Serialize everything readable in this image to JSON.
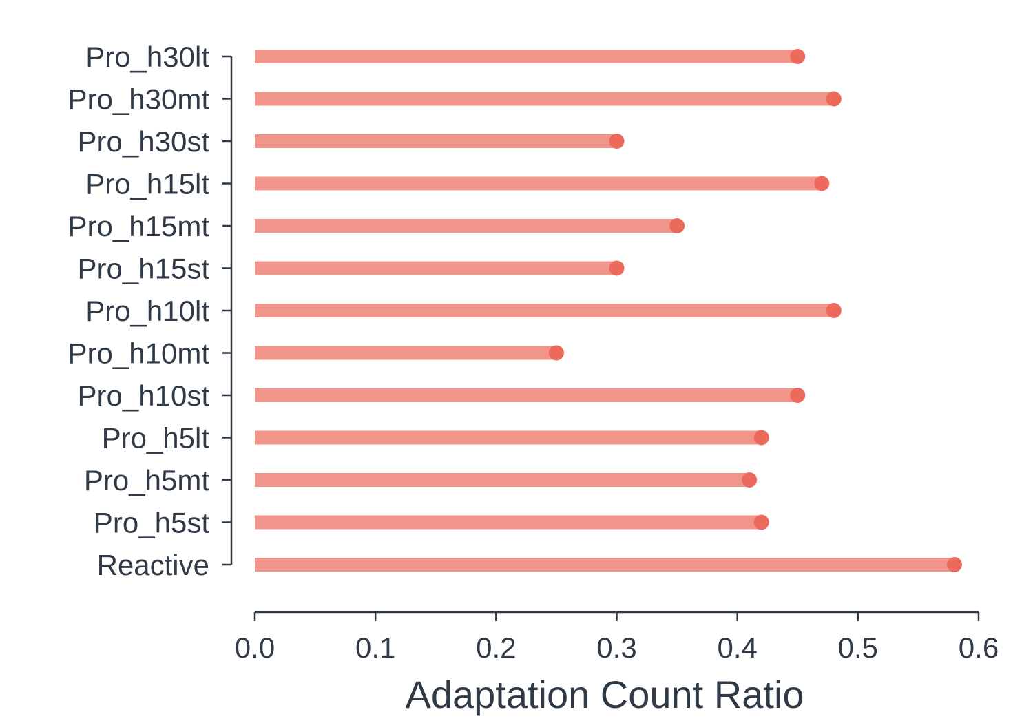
{
  "chart_data": {
    "type": "bar",
    "orientation": "horizontal",
    "style": "lollipop",
    "title": "",
    "xlabel": "Adaptation Count Ratio",
    "ylabel": "",
    "xlim": [
      0.0,
      0.6
    ],
    "xticks": [
      "0.0",
      "0.1",
      "0.2",
      "0.3",
      "0.4",
      "0.5",
      "0.6"
    ],
    "grid": false,
    "legend": "none",
    "categories": [
      "Pro_h30lt",
      "Pro_h30mt",
      "Pro_h30st",
      "Pro_h15lt",
      "Pro_h15mt",
      "Pro_h15st",
      "Pro_h10lt",
      "Pro_h10mt",
      "Pro_h10st",
      "Pro_h5lt",
      "Pro_h5mt",
      "Pro_h5st",
      "Reactive"
    ],
    "values": [
      0.45,
      0.48,
      0.3,
      0.47,
      0.35,
      0.3,
      0.48,
      0.25,
      0.45,
      0.42,
      0.41,
      0.42,
      0.58
    ],
    "colors": {
      "bar": "#f1948a",
      "dot": "#ec6a5c",
      "axis": "#2f3a46",
      "text": "#2f3a46"
    }
  }
}
